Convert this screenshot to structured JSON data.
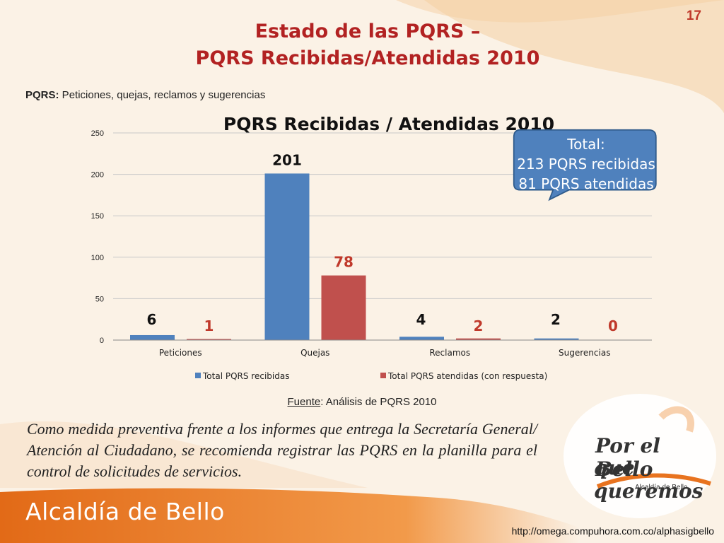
{
  "page_number": "17",
  "title_line1": "Estado de las PQRS –",
  "title_line2": "PQRS Recibidas/Atendidas 2010",
  "subtitle_label": "PQRS:",
  "subtitle_text": " Peticiones, quejas, reclamos y sugerencias",
  "callout": {
    "label": "Total",
    "line1": "213 PQRS recibidas",
    "line2": "81 PQRS atendidas"
  },
  "source_label": "Fuente",
  "source_text": ": Análisis de PQRS 2010",
  "note": "Como medida preventiva frente a los informes que entrega la Secretaría General/ Atención al Ciudadano, se recomienda registrar las PQRS en la planilla para el control de solicitudes de servicios.",
  "footer_brand": "Alcaldía de Bello",
  "footer_url": "http://omega.compuhora.com.co/alphasigbello",
  "logo": {
    "line1": "Por el Bello",
    "line2": "que queremos",
    "sub": "Alcaldía de Bello"
  },
  "colors": {
    "title": "#b22222",
    "series_recibidas": "#4f81bd",
    "series_atendidas": "#c0504d",
    "callout_fill": "#4f81bd",
    "footer": "#e8731f"
  },
  "chart_data": {
    "type": "bar",
    "title": "PQRS Recibidas  / Atendidas 2010",
    "categories": [
      "Peticiones",
      "Quejas",
      "Reclamos",
      "Sugerencias"
    ],
    "series": [
      {
        "name": "Total PQRS recibidas",
        "values": [
          6,
          201,
          4,
          2
        ]
      },
      {
        "name": "Total PQRS atendidas (con respuesta)",
        "values": [
          1,
          78,
          2,
          0
        ]
      }
    ],
    "ylim": [
      0,
      250
    ],
    "yticks": [
      0,
      50,
      100,
      150,
      200,
      250
    ],
    "grid": true,
    "legend": "bottom"
  }
}
